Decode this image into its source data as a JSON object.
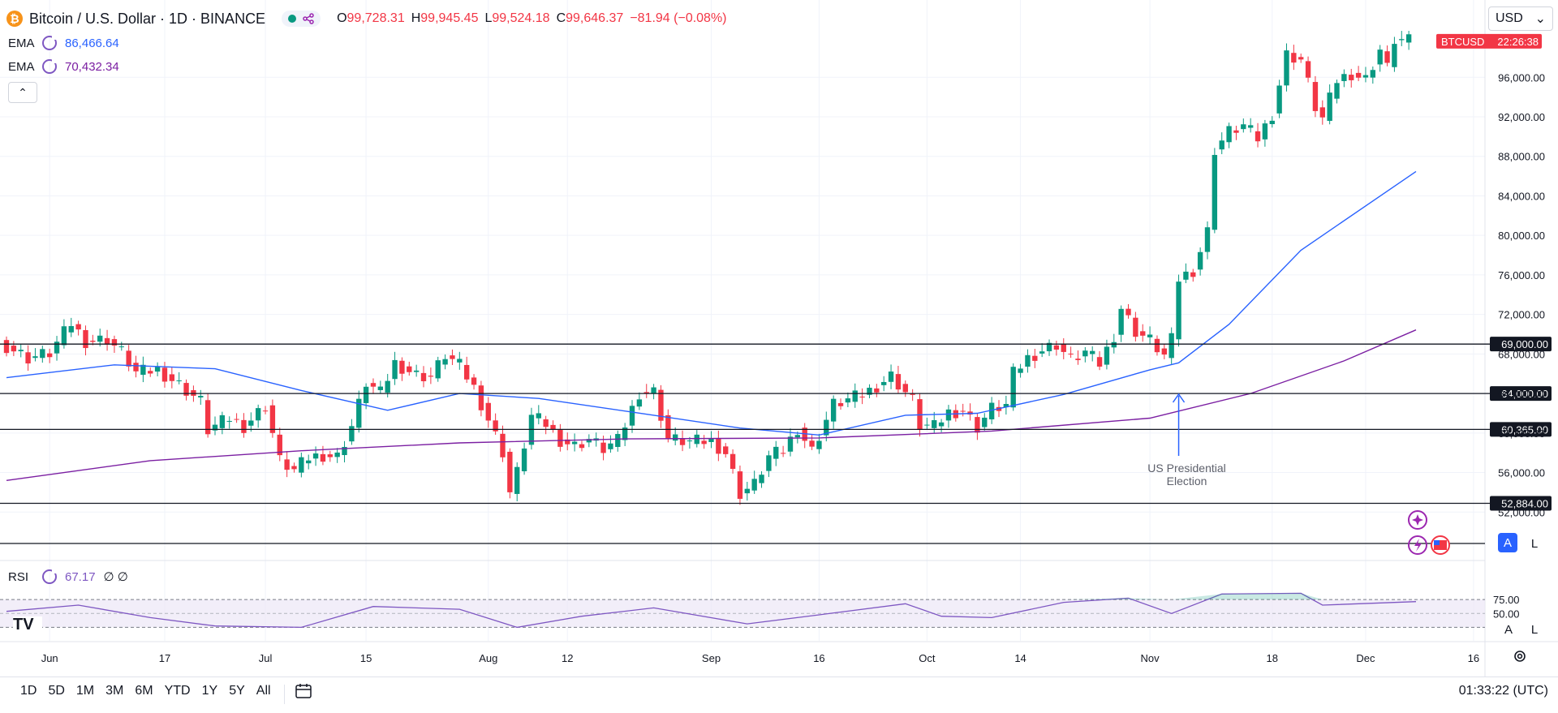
{
  "header": {
    "coin_glyph": "₿",
    "symbol": "Bitcoin / U.S. Dollar · 1D · BINANCE",
    "open_label": "O",
    "open": "99,728.31",
    "high_label": "H",
    "high": "99,945.45",
    "low_label": "L",
    "low": "99,524.18",
    "close_label": "C",
    "close": "99,646.37",
    "change": "−81.94 (−0.08%)"
  },
  "indicators": [
    {
      "label": "EMA",
      "value": "86,466.64",
      "color": "#2962ff"
    },
    {
      "label": "EMA",
      "value": "70,432.34",
      "color": "#7b1fa2"
    }
  ],
  "collapse_glyph": "⌃",
  "currency": {
    "label": "USD",
    "chevron": "⌄"
  },
  "price_tag": {
    "symbol": "BTCUSD",
    "countdown": "22:26:38",
    "color": "#f23645"
  },
  "annotation": {
    "line1": "US Presidential",
    "line2": "Election"
  },
  "rsi": {
    "label": "RSI",
    "value": "67.17",
    "extra": "∅ ∅",
    "ticks": [
      "75.00",
      "50.00"
    ]
  },
  "scale_buttons": {
    "auto": "A",
    "log": "L"
  },
  "timeframes": [
    "1D",
    "5D",
    "1M",
    "3M",
    "6M",
    "YTD",
    "1Y",
    "5Y",
    "All"
  ],
  "clock": "01:33:22 (UTC)",
  "logo_text": "TV",
  "chart_data": {
    "type": "candlestick",
    "title": "Bitcoin / U.S. Dollar · 1D · BINANCE",
    "x_tick_labels": [
      "Jun",
      "17",
      "Jul",
      "15",
      "Aug",
      "12",
      "Sep",
      "16",
      "Oct",
      "14",
      "Nov",
      "18",
      "Dec",
      "16"
    ],
    "y_tick_labels": [
      "96,000.00",
      "92,000.00",
      "88,000.00",
      "84,000.00",
      "80,000.00",
      "76,000.00",
      "72,000.00",
      "68,000.00",
      "64,000.00",
      "60,000.00",
      "56,000.00",
      "52,000.00"
    ],
    "y_ticks": [
      96000,
      92000,
      88000,
      84000,
      80000,
      76000,
      72000,
      68000,
      64000,
      60000,
      56000,
      52000
    ],
    "ylim": [
      48000,
      103000
    ],
    "x_ticks": [
      {
        "label": "Jun",
        "date": "2024-06-01"
      },
      {
        "label": "17",
        "date": "2024-06-17"
      },
      {
        "label": "Jul",
        "date": "2024-07-01"
      },
      {
        "label": "15",
        "date": "2024-07-15"
      },
      {
        "label": "Aug",
        "date": "2024-08-01"
      },
      {
        "label": "12",
        "date": "2024-08-12"
      },
      {
        "label": "Sep",
        "date": "2024-09-01"
      },
      {
        "label": "16",
        "date": "2024-09-16"
      },
      {
        "label": "Oct",
        "date": "2024-10-01"
      },
      {
        "label": "14",
        "date": "2024-10-14"
      },
      {
        "label": "Nov",
        "date": "2024-11-01"
      },
      {
        "label": "18",
        "date": "2024-11-18"
      },
      {
        "label": "Dec",
        "date": "2024-12-01"
      },
      {
        "label": "16",
        "date": "2024-12-16"
      }
    ],
    "date_range": [
      "2024-05-26",
      "2024-12-08"
    ],
    "up_color": "#089981",
    "down_color": "#f23645",
    "close_path": [
      [
        "2024-05-26",
        69200
      ],
      [
        "2024-05-30",
        67600
      ],
      [
        "2024-06-02",
        68100
      ],
      [
        "2024-06-05",
        71100
      ],
      [
        "2024-06-07",
        69300
      ],
      [
        "2024-06-10",
        69500
      ],
      [
        "2024-06-12",
        68200
      ],
      [
        "2024-06-14",
        66100
      ],
      [
        "2024-06-17",
        66400
      ],
      [
        "2024-06-20",
        64900
      ],
      [
        "2024-06-23",
        63200
      ],
      [
        "2024-06-24",
        60300
      ],
      [
        "2024-06-27",
        61500
      ],
      [
        "2024-06-29",
        60700
      ],
      [
        "2024-07-02",
        62800
      ],
      [
        "2024-07-04",
        57200
      ],
      [
        "2024-07-06",
        56200
      ],
      [
        "2024-07-08",
        57500
      ],
      [
        "2024-07-10",
        57800
      ],
      [
        "2024-07-12",
        57600
      ],
      [
        "2024-07-14",
        60700
      ],
      [
        "2024-07-16",
        65100
      ],
      [
        "2024-07-18",
        64000
      ],
      [
        "2024-07-20",
        67100
      ],
      [
        "2024-07-23",
        65900
      ],
      [
        "2024-07-25",
        65700
      ],
      [
        "2024-07-27",
        67900
      ],
      [
        "2024-07-29",
        66800
      ],
      [
        "2024-07-31",
        64600
      ],
      [
        "2024-08-02",
        61400
      ],
      [
        "2024-08-04",
        58100
      ],
      [
        "2024-08-05",
        54000
      ],
      [
        "2024-08-06",
        56000
      ],
      [
        "2024-08-08",
        61700
      ],
      [
        "2024-08-10",
        60900
      ],
      [
        "2024-08-12",
        59300
      ],
      [
        "2024-08-14",
        58700
      ],
      [
        "2024-08-16",
        59400
      ],
      [
        "2024-08-18",
        58400
      ],
      [
        "2024-08-20",
        59200
      ],
      [
        "2024-08-23",
        64100
      ],
      [
        "2024-08-25",
        64200
      ],
      [
        "2024-08-27",
        59400
      ],
      [
        "2024-08-30",
        59100
      ],
      [
        "2024-09-02",
        59200
      ],
      [
        "2024-09-04",
        58000
      ],
      [
        "2024-09-06",
        53900
      ],
      [
        "2024-09-08",
        54800
      ],
      [
        "2024-09-10",
        57600
      ],
      [
        "2024-09-12",
        58200
      ],
      [
        "2024-09-14",
        60500
      ],
      [
        "2024-09-16",
        58200
      ],
      [
        "2024-09-19",
        62900
      ],
      [
        "2024-09-22",
        63600
      ],
      [
        "2024-09-24",
        64300
      ],
      [
        "2024-09-27",
        65800
      ],
      [
        "2024-09-30",
        63300
      ],
      [
        "2024-10-01",
        60800
      ],
      [
        "2024-10-03",
        60600
      ],
      [
        "2024-10-05",
        62100
      ],
      [
        "2024-10-07",
        62300
      ],
      [
        "2024-10-09",
        60600
      ],
      [
        "2024-10-11",
        62500
      ],
      [
        "2024-10-13",
        62800
      ],
      [
        "2024-10-14",
        66000
      ],
      [
        "2024-10-16",
        67600
      ],
      [
        "2024-10-18",
        68400
      ],
      [
        "2024-10-20",
        69000
      ],
      [
        "2024-10-22",
        67400
      ],
      [
        "2024-10-24",
        68200
      ],
      [
        "2024-10-26",
        67000
      ],
      [
        "2024-10-28",
        69900
      ],
      [
        "2024-10-29",
        72700
      ],
      [
        "2024-10-31",
        70300
      ],
      [
        "2024-11-02",
        69400
      ],
      [
        "2024-11-04",
        67800
      ],
      [
        "2024-11-05",
        69400
      ],
      [
        "2024-11-06",
        75600
      ],
      [
        "2024-11-08",
        76500
      ],
      [
        "2024-11-10",
        80400
      ],
      [
        "2024-11-11",
        88700
      ],
      [
        "2024-11-13",
        90500
      ],
      [
        "2024-11-15",
        91100
      ],
      [
        "2024-11-17",
        89800
      ],
      [
        "2024-11-19",
        92300
      ],
      [
        "2024-11-21",
        98300
      ],
      [
        "2024-11-23",
        97800
      ],
      [
        "2024-11-25",
        93000
      ],
      [
        "2024-11-26",
        91800
      ],
      [
        "2024-11-28",
        95700
      ],
      [
        "2024-11-30",
        96400
      ],
      [
        "2024-12-02",
        95800
      ],
      [
        "2024-12-04",
        98800
      ],
      [
        "2024-12-05",
        96900
      ],
      [
        "2024-12-06",
        99800
      ],
      [
        "2024-12-08",
        99650
      ]
    ],
    "support_lines": [
      {
        "value": 69000,
        "label": "69,000.00"
      },
      {
        "value": 64000,
        "label": "64,000.00"
      },
      {
        "value": 60365,
        "label": "60,365.00"
      },
      {
        "value": 52884,
        "label": "52,884.00"
      }
    ],
    "ema_fast": {
      "name": "EMA",
      "color": "#2962ff",
      "points": [
        [
          "2024-05-26",
          65600
        ],
        [
          "2024-06-10",
          66900
        ],
        [
          "2024-06-24",
          66500
        ],
        [
          "2024-07-06",
          64300
        ],
        [
          "2024-07-18",
          62300
        ],
        [
          "2024-07-28",
          64000
        ],
        [
          "2024-08-08",
          63500
        ],
        [
          "2024-08-24",
          61800
        ],
        [
          "2024-09-05",
          60500
        ],
        [
          "2024-09-16",
          59800
        ],
        [
          "2024-09-28",
          61800
        ],
        [
          "2024-10-08",
          62000
        ],
        [
          "2024-10-20",
          63900
        ],
        [
          "2024-11-01",
          66400
        ],
        [
          "2024-11-05",
          67100
        ],
        [
          "2024-11-12",
          71000
        ],
        [
          "2024-11-22",
          78500
        ],
        [
          "2024-12-08",
          86466
        ]
      ]
    },
    "ema_slow": {
      "name": "EMA",
      "color": "#7b1fa2",
      "points": [
        [
          "2024-05-26",
          55200
        ],
        [
          "2024-06-15",
          57200
        ],
        [
          "2024-07-06",
          58200
        ],
        [
          "2024-07-28",
          59000
        ],
        [
          "2024-08-20",
          59400
        ],
        [
          "2024-09-16",
          59500
        ],
        [
          "2024-10-10",
          60200
        ],
        [
          "2024-11-01",
          61500
        ],
        [
          "2024-11-15",
          64000
        ],
        [
          "2024-11-28",
          67300
        ],
        [
          "2024-12-08",
          70432
        ]
      ]
    },
    "rsi_series": {
      "levels": [
        70,
        50,
        30
      ],
      "points": [
        [
          "2024-05-26",
          53
        ],
        [
          "2024-06-05",
          62
        ],
        [
          "2024-06-15",
          44
        ],
        [
          "2024-06-24",
          32
        ],
        [
          "2024-07-06",
          30
        ],
        [
          "2024-07-16",
          60
        ],
        [
          "2024-07-28",
          56
        ],
        [
          "2024-08-05",
          30
        ],
        [
          "2024-08-14",
          46
        ],
        [
          "2024-08-24",
          58
        ],
        [
          "2024-09-06",
          35
        ],
        [
          "2024-09-16",
          48
        ],
        [
          "2024-09-28",
          64
        ],
        [
          "2024-10-03",
          46
        ],
        [
          "2024-10-10",
          44
        ],
        [
          "2024-10-20",
          66
        ],
        [
          "2024-10-29",
          72
        ],
        [
          "2024-11-04",
          50
        ],
        [
          "2024-11-11",
          78
        ],
        [
          "2024-11-22",
          79
        ],
        [
          "2024-11-25",
          62
        ],
        [
          "2024-12-08",
          67
        ]
      ]
    }
  }
}
